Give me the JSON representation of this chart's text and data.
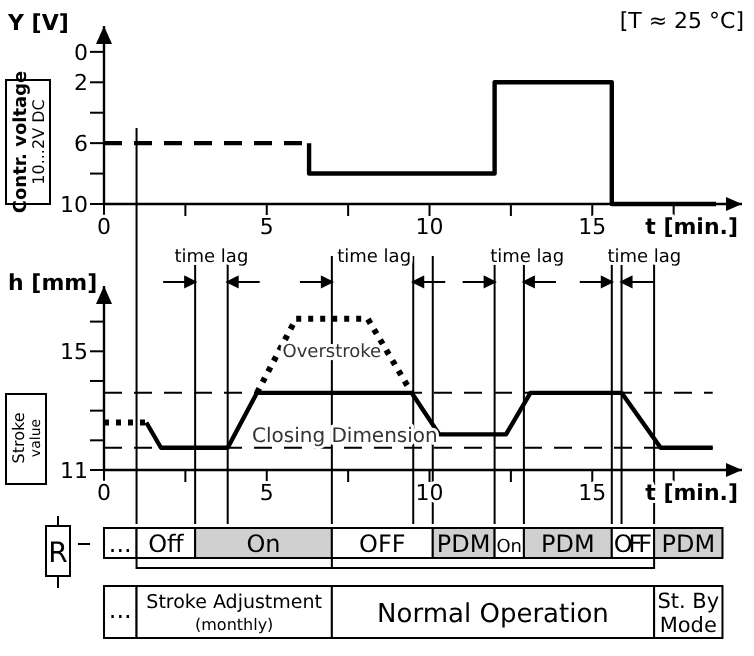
{
  "chart_data": [
    {
      "type": "line",
      "ylabel": "Y [V]",
      "xlabel": "t [min.]",
      "xlim": [
        0,
        19.6
      ],
      "ylim": [
        10,
        -1.7
      ],
      "xticks": [
        0,
        {
          "value": 2.5,
          "label": null
        },
        5,
        {
          "value": 7.5,
          "label": null
        },
        10,
        {
          "value": 12.5,
          "label": null
        },
        15,
        {
          "value": 17.5,
          "label": null
        }
      ],
      "yticks": [
        0,
        2,
        {
          "value": 4,
          "label": null
        },
        6,
        {
          "value": 8,
          "label": null
        },
        10
      ],
      "series": [
        {
          "color": "#000000",
          "line_style": "dashed",
          "x": [
            0,
            6.3
          ],
          "values": [
            6,
            6
          ]
        },
        {
          "color": "#000000",
          "line_style": "solid",
          "x": [
            6.3,
            6.3,
            12,
            12,
            15.6,
            15.6,
            18.8
          ],
          "values": [
            6,
            8,
            8,
            2,
            2,
            10,
            10
          ]
        }
      ],
      "ref_lines": [
        {
          "axis": "x",
          "value": 1
        }
      ],
      "annotations": [
        "[T ≈ 25 °C]",
        "Contr. voltage",
        "10...2V DC"
      ],
      "marker": "none",
      "grid": false
    },
    {
      "type": "line",
      "ylabel": "h [mm]",
      "xlabel": "t [min.]",
      "xlim": [
        0,
        19.6
      ],
      "ylim": [
        11,
        17.2
      ],
      "xticks": [
        0,
        {
          "value": 2.5,
          "label": null
        },
        5,
        {
          "value": 7.5,
          "label": null
        },
        10,
        {
          "value": 12.5,
          "label": null
        },
        15,
        {
          "value": 17.5,
          "label": null
        }
      ],
      "yticks": [
        11,
        {
          "value": 12,
          "label": null
        },
        {
          "value": 13,
          "label": null
        },
        {
          "value": 14,
          "label": null
        },
        15,
        {
          "value": 16,
          "label": null
        }
      ],
      "series": [
        {
          "color": "#000000",
          "line_style": "dotted",
          "x": [
            0,
            1.3
          ],
          "values": [
            12.6,
            12.6
          ]
        },
        {
          "color": "#000000",
          "line_style": "solid",
          "x": [
            1.3,
            1.75,
            3.8,
            4.7,
            9.45,
            10.3,
            12.35,
            13.1,
            15.9,
            17.1,
            18.7
          ],
          "values": [
            12.6,
            11.75,
            11.75,
            13.6,
            13.6,
            12.2,
            12.2,
            13.6,
            13.6,
            11.75,
            11.75
          ]
        },
        {
          "color": "#000000",
          "line_style": "dotted",
          "x": [
            4.7,
            5.9,
            8.1,
            9.45
          ],
          "values": [
            13.6,
            16.1,
            16.1,
            13.6
          ]
        }
      ],
      "ref_lines": [
        {
          "axis": "y",
          "value": 13.6,
          "line_style": "dashed"
        },
        {
          "axis": "y",
          "value": 11.75,
          "label": "Closing Dimension",
          "line_style": "dashed"
        },
        {
          "axis": "x",
          "value": 1
        },
        {
          "axis": "x",
          "value": 2.8
        },
        {
          "axis": "x",
          "value": 3.8
        },
        {
          "axis": "x",
          "value": 7
        },
        {
          "axis": "x",
          "value": 9.5
        },
        {
          "axis": "x",
          "value": 10.1
        },
        {
          "axis": "x",
          "value": 12
        },
        {
          "axis": "x",
          "value": 12.9
        },
        {
          "axis": "x",
          "value": 15.6
        },
        {
          "axis": "x",
          "value": 15.9
        },
        {
          "axis": "x",
          "value": 16.9
        }
      ],
      "annotations": [
        "Stroke value",
        "Overstroke",
        "time lag",
        "time lag",
        "time lag",
        "time lag"
      ],
      "marker": "none",
      "grid": false
    },
    {
      "type": "other",
      "annotations": [
        "R",
        "...",
        "Off",
        "On",
        "OFF",
        "PDM",
        "On",
        "PDM",
        "OFF",
        "PDM",
        "...",
        "Stroke Adjustment",
        "(monthly)",
        "Normal Operation",
        "St. By",
        "Mode"
      ]
    }
  ]
}
